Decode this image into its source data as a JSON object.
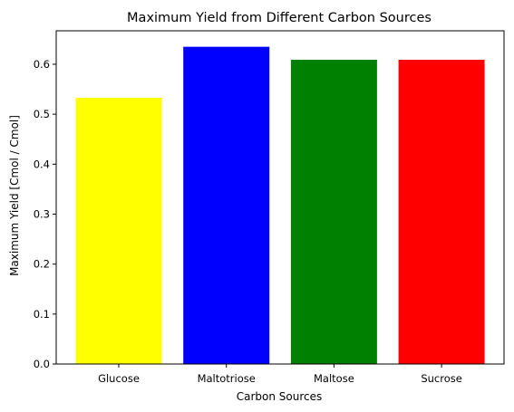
{
  "chart_data": {
    "type": "bar",
    "title": "Maximum Yield from Different Carbon Sources",
    "xlabel": "Carbon Sources",
    "ylabel": "Maximum Yield [Cmol / Cmol]",
    "categories": [
      "Glucose",
      "Maltotriose",
      "Maltose",
      "Sucrose"
    ],
    "values": [
      0.533,
      0.635,
      0.609,
      0.609
    ],
    "colors": [
      "#ffff00",
      "#0000ff",
      "#008000",
      "#ff0000"
    ],
    "ylim": [
      0,
      0.667
    ],
    "yticks": [
      0.0,
      0.1,
      0.2,
      0.3,
      0.4,
      0.5,
      0.6
    ],
    "ytick_labels": [
      "0.0",
      "0.1",
      "0.2",
      "0.3",
      "0.4",
      "0.5",
      "0.6"
    ],
    "grid": false,
    "legend": "none"
  }
}
